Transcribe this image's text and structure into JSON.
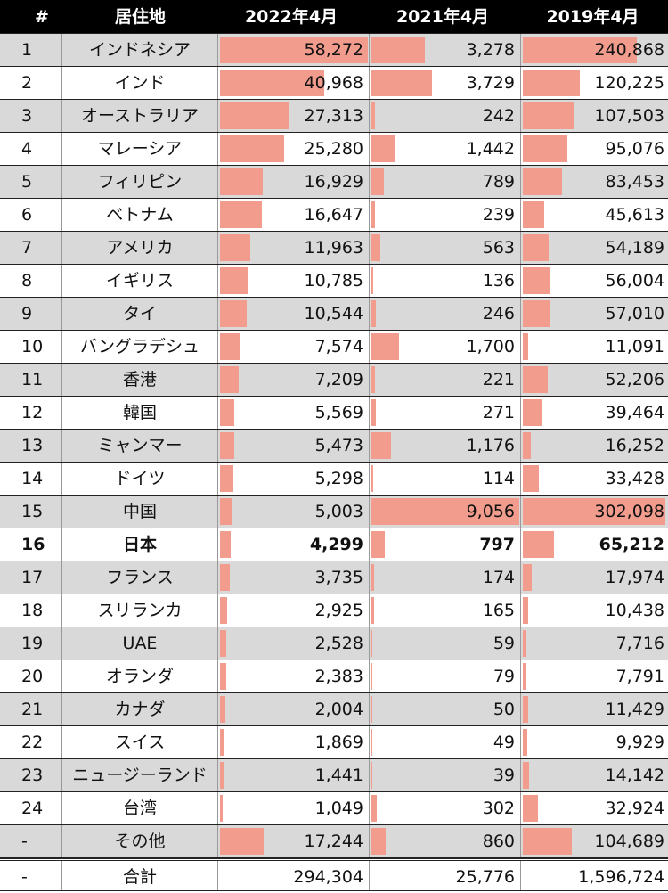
{
  "table": {
    "header": [
      "#",
      "居住地",
      "2022年4月",
      "2021年4月",
      "2019年4月"
    ],
    "bar_color": "#f19c8d",
    "rows": [
      {
        "rank": "1",
        "name": "インドネシア",
        "values": [
          {
            "value": 58272,
            "label": "58,272"
          },
          {
            "value": 3278,
            "label": "3,278"
          },
          {
            "value": 240868,
            "label": "240,868"
          }
        ]
      },
      {
        "rank": "2",
        "name": "インド",
        "values": [
          {
            "value": 40968,
            "label": "40,968"
          },
          {
            "value": 3729,
            "label": "3,729"
          },
          {
            "value": 120225,
            "label": "120,225"
          }
        ]
      },
      {
        "rank": "3",
        "name": "オーストラリア",
        "values": [
          {
            "value": 27313,
            "label": "27,313"
          },
          {
            "value": 242,
            "label": "242"
          },
          {
            "value": 107503,
            "label": "107,503"
          }
        ]
      },
      {
        "rank": "4",
        "name": "マレーシア",
        "values": [
          {
            "value": 25280,
            "label": "25,280"
          },
          {
            "value": 1442,
            "label": "1,442"
          },
          {
            "value": 95076,
            "label": "95,076"
          }
        ]
      },
      {
        "rank": "5",
        "name": "フィリピン",
        "values": [
          {
            "value": 16929,
            "label": "16,929"
          },
          {
            "value": 789,
            "label": "789"
          },
          {
            "value": 83453,
            "label": "83,453"
          }
        ]
      },
      {
        "rank": "6",
        "name": "ベトナム",
        "values": [
          {
            "value": 16647,
            "label": "16,647"
          },
          {
            "value": 239,
            "label": "239"
          },
          {
            "value": 45613,
            "label": "45,613"
          }
        ]
      },
      {
        "rank": "7",
        "name": "アメリカ",
        "values": [
          {
            "value": 11963,
            "label": "11,963"
          },
          {
            "value": 563,
            "label": "563"
          },
          {
            "value": 54189,
            "label": "54,189"
          }
        ]
      },
      {
        "rank": "8",
        "name": "イギリス",
        "values": [
          {
            "value": 10785,
            "label": "10,785"
          },
          {
            "value": 136,
            "label": "136"
          },
          {
            "value": 56004,
            "label": "56,004"
          }
        ]
      },
      {
        "rank": "9",
        "name": "タイ",
        "values": [
          {
            "value": 10544,
            "label": "10,544"
          },
          {
            "value": 246,
            "label": "246"
          },
          {
            "value": 57010,
            "label": "57,010"
          }
        ]
      },
      {
        "rank": "10",
        "name": "バングラデシュ",
        "values": [
          {
            "value": 7574,
            "label": "7,574"
          },
          {
            "value": 1700,
            "label": "1,700"
          },
          {
            "value": 11091,
            "label": "11,091"
          }
        ]
      },
      {
        "rank": "11",
        "name": "香港",
        "values": [
          {
            "value": 7209,
            "label": "7,209"
          },
          {
            "value": 221,
            "label": "221"
          },
          {
            "value": 52206,
            "label": "52,206"
          }
        ]
      },
      {
        "rank": "12",
        "name": "韓国",
        "values": [
          {
            "value": 5569,
            "label": "5,569"
          },
          {
            "value": 271,
            "label": "271"
          },
          {
            "value": 39464,
            "label": "39,464"
          }
        ]
      },
      {
        "rank": "13",
        "name": "ミャンマー",
        "values": [
          {
            "value": 5473,
            "label": "5,473"
          },
          {
            "value": 1176,
            "label": "1,176"
          },
          {
            "value": 16252,
            "label": "16,252"
          }
        ]
      },
      {
        "rank": "14",
        "name": "ドイツ",
        "values": [
          {
            "value": 5298,
            "label": "5,298"
          },
          {
            "value": 114,
            "label": "114"
          },
          {
            "value": 33428,
            "label": "33,428"
          }
        ]
      },
      {
        "rank": "15",
        "name": "中国",
        "values": [
          {
            "value": 5003,
            "label": "5,003"
          },
          {
            "value": 9056,
            "label": "9,056"
          },
          {
            "value": 302098,
            "label": "302,098"
          }
        ]
      },
      {
        "rank": "16",
        "name": "日本",
        "bold": true,
        "values": [
          {
            "value": 4299,
            "label": "4,299"
          },
          {
            "value": 797,
            "label": "797"
          },
          {
            "value": 65212,
            "label": "65,212"
          }
        ]
      },
      {
        "rank": "17",
        "name": "フランス",
        "values": [
          {
            "value": 3735,
            "label": "3,735"
          },
          {
            "value": 174,
            "label": "174"
          },
          {
            "value": 17974,
            "label": "17,974"
          }
        ]
      },
      {
        "rank": "18",
        "name": "スリランカ",
        "values": [
          {
            "value": 2925,
            "label": "2,925"
          },
          {
            "value": 165,
            "label": "165"
          },
          {
            "value": 10438,
            "label": "10,438"
          }
        ]
      },
      {
        "rank": "19",
        "name": "UAE",
        "values": [
          {
            "value": 2528,
            "label": "2,528"
          },
          {
            "value": 59,
            "label": "59"
          },
          {
            "value": 7716,
            "label": "7,716"
          }
        ]
      },
      {
        "rank": "20",
        "name": "オランダ",
        "values": [
          {
            "value": 2383,
            "label": "2,383"
          },
          {
            "value": 79,
            "label": "79"
          },
          {
            "value": 7791,
            "label": "7,791"
          }
        ]
      },
      {
        "rank": "21",
        "name": "カナダ",
        "values": [
          {
            "value": 2004,
            "label": "2,004"
          },
          {
            "value": 50,
            "label": "50"
          },
          {
            "value": 11429,
            "label": "11,429"
          }
        ]
      },
      {
        "rank": "22",
        "name": "スイス",
        "values": [
          {
            "value": 1869,
            "label": "1,869"
          },
          {
            "value": 49,
            "label": "49"
          },
          {
            "value": 9929,
            "label": "9,929"
          }
        ]
      },
      {
        "rank": "23",
        "name": "ニュージーランド",
        "values": [
          {
            "value": 1441,
            "label": "1,441"
          },
          {
            "value": 39,
            "label": "39"
          },
          {
            "value": 14142,
            "label": "14,142"
          }
        ]
      },
      {
        "rank": "24",
        "name": "台湾",
        "values": [
          {
            "value": 1049,
            "label": "1,049"
          },
          {
            "value": 302,
            "label": "302"
          },
          {
            "value": 32924,
            "label": "32,924"
          }
        ]
      },
      {
        "rank": "-",
        "name": "その他",
        "values": [
          {
            "value": 17244,
            "label": "17,244"
          },
          {
            "value": 860,
            "label": "860"
          },
          {
            "value": 104689,
            "label": "104,689"
          }
        ]
      }
    ],
    "total": {
      "rank": "-",
      "name": "合計",
      "values": [
        {
          "value": 294304,
          "label": "294,304"
        },
        {
          "value": 25776,
          "label": "25,776"
        },
        {
          "value": 1596724,
          "label": "1,596,724"
        }
      ]
    }
  }
}
